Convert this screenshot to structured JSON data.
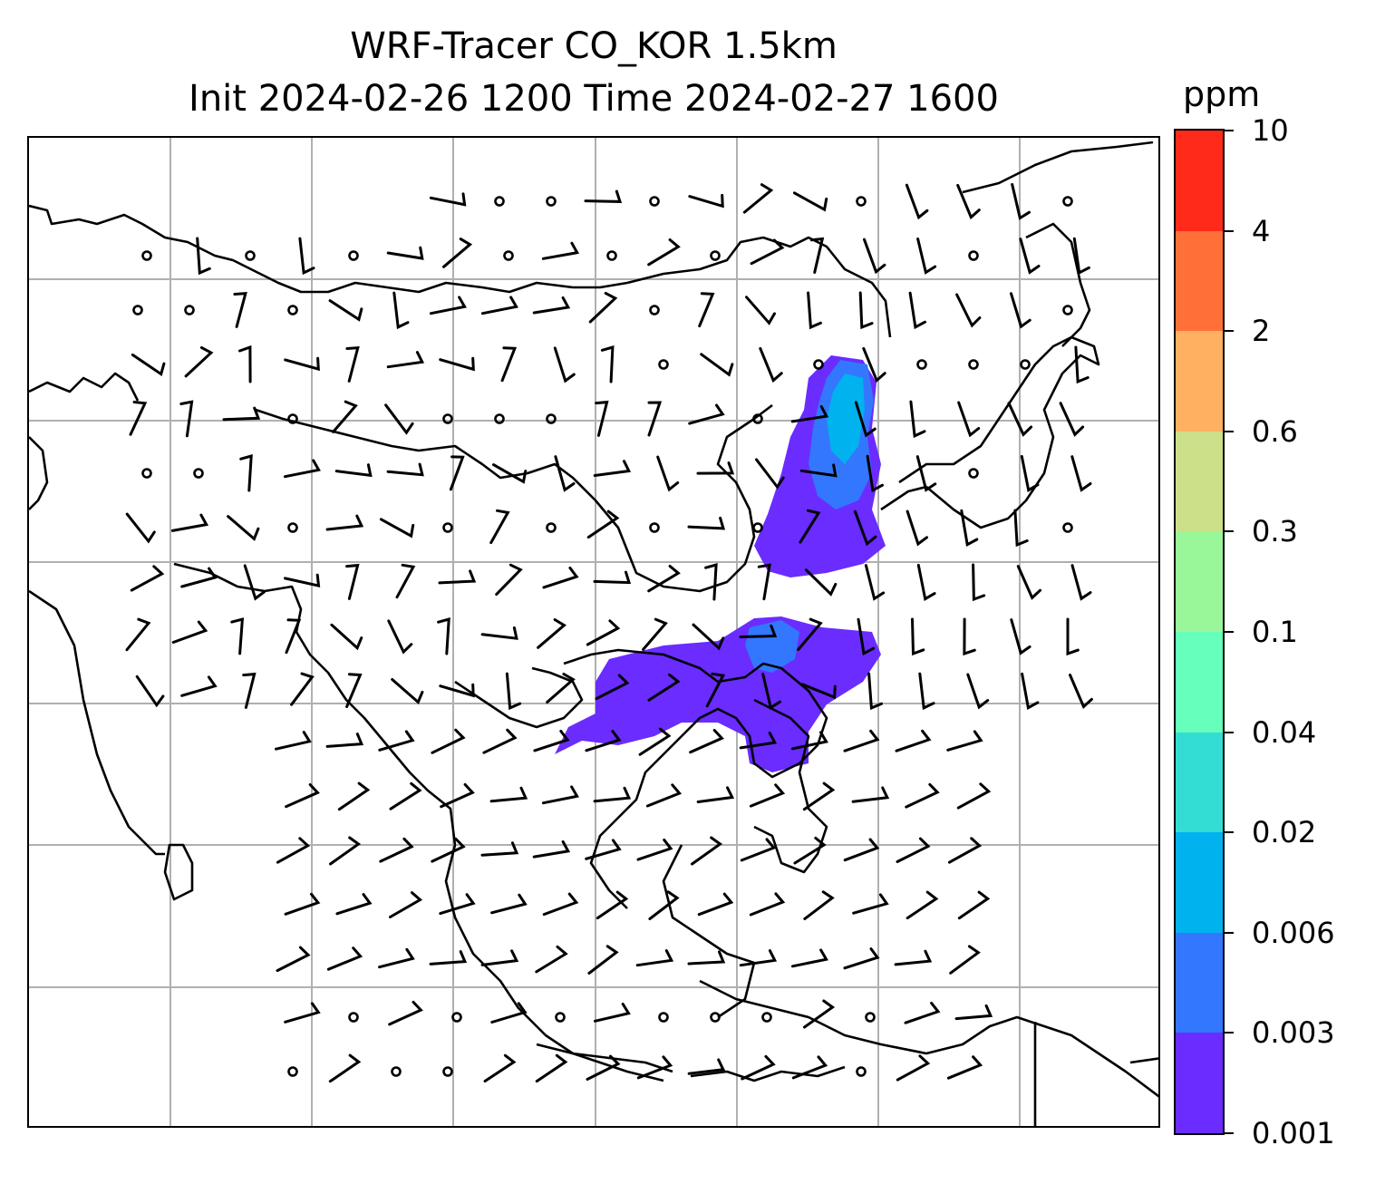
{
  "title": {
    "line1": "WRF-Tracer CO_KOR 1.5km",
    "line2": "Init 2024-02-26 1200 Time 2024-02-27 1600"
  },
  "colorbar": {
    "unit": "ppm",
    "levels": [
      "0.001",
      "0.003",
      "0.006",
      "0.02",
      "0.04",
      "0.1",
      "0.3",
      "0.6",
      "2",
      "4",
      "10"
    ],
    "colors": [
      "#6a2cff",
      "#3377ff",
      "#00b2ee",
      "#33ddd4",
      "#66ffbb",
      "#99f799",
      "#cce08a",
      "#ffb061",
      "#ff7038",
      "#ff2a1a"
    ]
  },
  "map": {
    "gridlines": true,
    "coastline_color": "#000000",
    "grid_color": "#b0b0b0"
  }
}
